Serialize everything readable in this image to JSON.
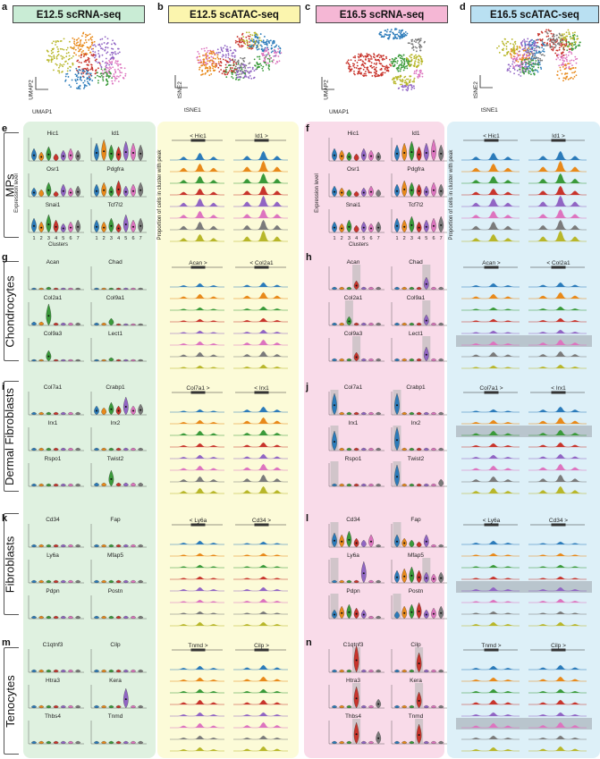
{
  "colors": {
    "green_bg": "#dff1e0",
    "yellow_bg": "#fcfbd8",
    "pink_bg": "#f9dbe9",
    "blue_bg": "#ddf0f8",
    "hdr_green": "#c9ecd5",
    "hdr_yellow": "#fbf5ae",
    "hdr_pink": "#f5b7d5",
    "hdr_blue": "#b9e0f2",
    "clusters": [
      "#2b7bba",
      "#e8891a",
      "#3a9a3a",
      "#c8342c",
      "#9165c4",
      "#dd74bf",
      "#7b7b7b",
      "#b8b72a"
    ]
  },
  "headers": [
    {
      "letter": "a",
      "title": "E12.5 scRNA-seq",
      "axis_y": "UMAP2",
      "axis_x": "UMAP1"
    },
    {
      "letter": "b",
      "title": "E12.5 scATAC-seq",
      "axis_y": "tSNE2",
      "axis_x": "tSNE1"
    },
    {
      "letter": "c",
      "title": "E16.5 scRNA-seq",
      "axis_y": "UMAP2",
      "axis_x": "UMAP1"
    },
    {
      "letter": "d",
      "title": "E16.5 scATAC-seq",
      "axis_y": "tSNE2",
      "axis_x": "tSNE1"
    }
  ],
  "rows": [
    {
      "name": "MPs",
      "left": "e",
      "right": "f",
      "genes": [
        "Hic1",
        "Id1",
        "Osr1",
        "Pdgfra",
        "Snai1",
        "Tcf7l2"
      ],
      "atac": [
        "< Hic1",
        "Id1 >"
      ]
    },
    {
      "name": "Chondrocytes",
      "left": "g",
      "right": "h",
      "genes": [
        "Acan",
        "Chad",
        "Col2a1",
        "Col9a1",
        "Col9a3",
        "Lect1"
      ],
      "atac": [
        "Acan >",
        "< Col2a1"
      ]
    },
    {
      "name": "Dermal Fibroblasts",
      "left": "i",
      "right": "j",
      "genes": [
        "Col7a1",
        "Crabp1",
        "Irx1",
        "Irx2",
        "Rspo1",
        "Twist2"
      ],
      "atac": [
        "Col7a1 >",
        "< Irx1"
      ]
    },
    {
      "name": "Fibroblasts",
      "left": "k",
      "right": "l",
      "genes": [
        "Cd34",
        "Fap",
        "Ly6a",
        "Mfap5",
        "Pdpn",
        "Postn"
      ],
      "atac": [
        "< Ly6a",
        "Cd34 >"
      ]
    },
    {
      "name": "Tenocytes",
      "left": "m",
      "right": "n",
      "genes": [
        "C1qtnf3",
        "Cilp",
        "Htra3",
        "Kera",
        "Thbs4",
        "Tnmd"
      ],
      "atac": [
        "Tnmd >",
        "Cilp >"
      ]
    }
  ],
  "axes": {
    "expression": "Expression level",
    "clusters": "Clusters",
    "proportion": "Proportion of cells in cluster with peak",
    "cluster_ticks": [
      "1",
      "2",
      "3",
      "4",
      "5",
      "6",
      "7"
    ]
  }
}
